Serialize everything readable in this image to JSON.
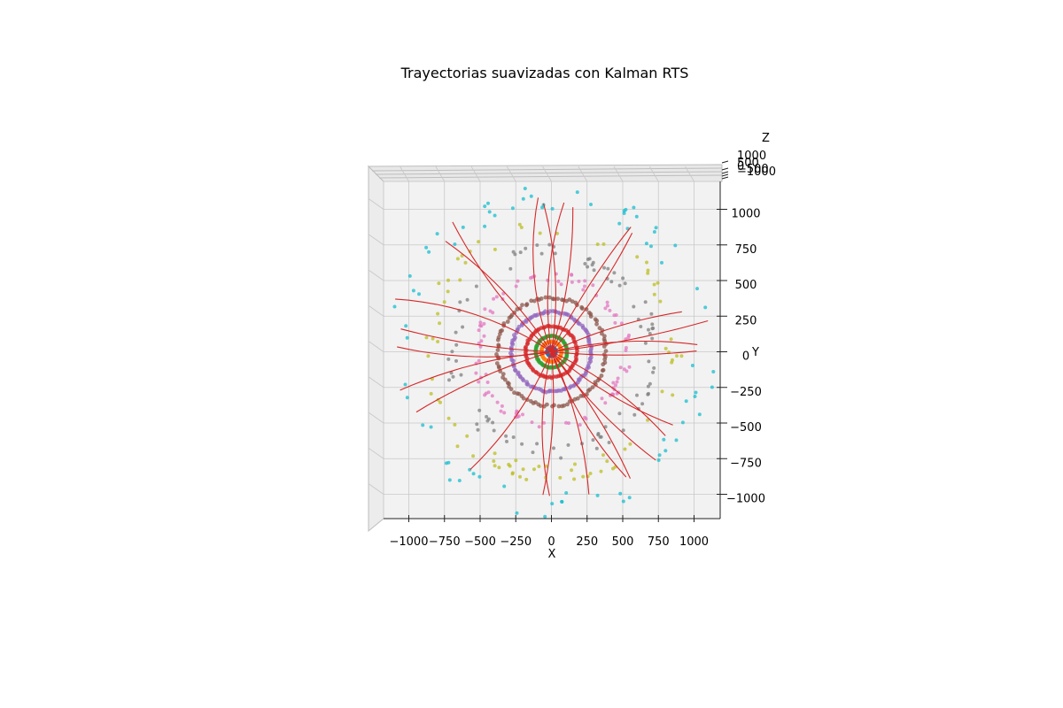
{
  "chart_data": {
    "type": "scatter3d",
    "title": "Trayectorias suavizadas con Kalman RTS",
    "xlabel": "X",
    "ylabel": "Y",
    "zlabel": "Z",
    "xlim": [
      -1200,
      1150
    ],
    "ylim": [
      -1180,
      1180
    ],
    "x_ticks": [
      {
        "value": -1000,
        "label": "−1000"
      },
      {
        "value": -750,
        "label": "−750"
      },
      {
        "value": -500,
        "label": "−500"
      },
      {
        "value": -250,
        "label": "−250"
      },
      {
        "value": 0,
        "label": "0"
      },
      {
        "value": 250,
        "label": "250"
      },
      {
        "value": 500,
        "label": "500"
      },
      {
        "value": 750,
        "label": "750"
      },
      {
        "value": 1000,
        "label": "1000"
      }
    ],
    "y_ticks": [
      {
        "value": 1000,
        "label": "1000"
      },
      {
        "value": 750,
        "label": "750"
      },
      {
        "value": 500,
        "label": "500"
      },
      {
        "value": 250,
        "label": "250"
      },
      {
        "value": 0,
        "label": "0"
      },
      {
        "value": -250,
        "label": "−250"
      },
      {
        "value": -500,
        "label": "−500"
      },
      {
        "value": -750,
        "label": "−750"
      },
      {
        "value": -1000,
        "label": "−1000"
      }
    ],
    "z_ticks": [
      {
        "value": 1000,
        "label": "1000"
      },
      {
        "value": 500,
        "label": "500"
      },
      {
        "value": 0,
        "label": "0"
      },
      {
        "value": -500,
        "label": "−500"
      },
      {
        "value": -1000,
        "label": "−1000"
      }
    ],
    "detector_layers": [
      {
        "name": "layer-1",
        "radius": 30,
        "color": "#1f77b4",
        "n_points": 40
      },
      {
        "name": "layer-2",
        "radius": 70,
        "color": "#ff7f0e",
        "n_points": 55
      },
      {
        "name": "layer-3",
        "radius": 110,
        "color": "#2ca02c",
        "n_points": 70
      },
      {
        "name": "layer-4",
        "radius": 180,
        "color": "#d62728",
        "n_points": 80
      },
      {
        "name": "layer-5",
        "radius": 280,
        "color": "#9467bd",
        "n_points": 120
      },
      {
        "name": "layer-6",
        "radius": 380,
        "color": "#8c564b",
        "n_points": 110
      },
      {
        "name": "layer-7",
        "radius": 520,
        "color": "#e377c2",
        "n_points": 95
      },
      {
        "name": "layer-8",
        "radius": 700,
        "color": "#7f7f7f",
        "n_points": 90
      },
      {
        "name": "layer-9",
        "radius": 870,
        "color": "#bcbd22",
        "n_points": 80
      },
      {
        "name": "layer-10",
        "radius": 1080,
        "color": "#17becf",
        "n_points": 75
      }
    ],
    "trajectories": {
      "color": "#d62728",
      "tracks": [
        {
          "angle": 100,
          "length": 1060,
          "curvature": -0.00045
        },
        {
          "angle": 80,
          "length": 1050,
          "curvature": 0.0004
        },
        {
          "angle": 72,
          "length": 1030,
          "curvature": 0.0003
        },
        {
          "angle": 64,
          "length": 1040,
          "curvature": -0.0002
        },
        {
          "angle": 48,
          "length": 1010,
          "curvature": 0.00025
        },
        {
          "angle": 26,
          "length": 960,
          "curvature": -0.0003
        },
        {
          "angle": 14,
          "length": 1030,
          "curvature": -0.00035
        },
        {
          "angle": 6,
          "length": 1120,
          "curvature": 0.00015
        },
        {
          "angle": 112,
          "length": 1100,
          "curvature": -0.0005
        },
        {
          "angle": 122,
          "length": 1080,
          "curvature": 0.00035
        },
        {
          "angle": 138,
          "length": 1150,
          "curvature": -0.0003
        },
        {
          "angle": 145,
          "length": 1170,
          "curvature": 0.00045
        },
        {
          "angle": 178,
          "length": 1070,
          "curvature": -0.0002
        },
        {
          "angle": 184,
          "length": 1100,
          "curvature": 0.0003
        },
        {
          "angle": 190,
          "length": 1090,
          "curvature": -0.00035
        },
        {
          "angle": 196,
          "length": 1040,
          "curvature": 0.00025
        },
        {
          "angle": 248,
          "length": 1010,
          "curvature": -0.0004
        },
        {
          "angle": 255,
          "length": 1020,
          "curvature": 0.00045
        },
        {
          "angle": 276,
          "length": 1010,
          "curvature": -0.0003
        },
        {
          "angle": 288,
          "length": 1030,
          "curvature": 0.0004
        },
        {
          "angle": 296,
          "length": 1040,
          "curvature": -0.00035
        },
        {
          "angle": 304,
          "length": 1060,
          "curvature": 0.0003
        },
        {
          "angle": 310,
          "length": 1050,
          "curvature": -0.00025
        },
        {
          "angle": 318,
          "length": 1000,
          "curvature": 0.00035
        },
        {
          "angle": 336,
          "length": 1000,
          "curvature": -0.0004
        },
        {
          "angle": 354,
          "length": 1020,
          "curvature": 0.0002
        }
      ]
    }
  }
}
